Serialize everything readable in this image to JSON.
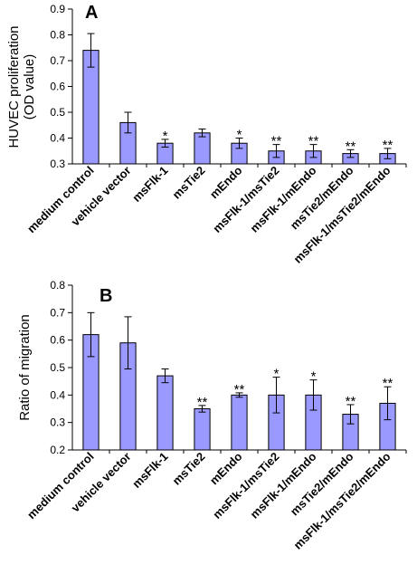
{
  "chart_data": [
    {
      "type": "bar",
      "panel_label": "A",
      "ylabel_lines": [
        "HUVEC proliferation",
        "(OD value)"
      ],
      "categories": [
        "medium control",
        "vehicle vector",
        "msFlk-1",
        "msTie2",
        "mEndo",
        "msFlk-1/msTie2",
        "msFlk-1/mEndo",
        "msTie2/mEndo",
        "msFlk-1/msTie2/mEndo"
      ],
      "values": [
        0.74,
        0.46,
        0.38,
        0.42,
        0.38,
        0.35,
        0.35,
        0.34,
        0.34
      ],
      "errors": [
        0.065,
        0.04,
        0.015,
        0.015,
        0.02,
        0.025,
        0.025,
        0.015,
        0.02
      ],
      "significance": [
        "",
        "",
        "*",
        "",
        "*",
        "**",
        "**",
        "**",
        "**"
      ],
      "ylim": [
        0.3,
        0.9
      ],
      "yticks": [
        "0.3",
        "0.4",
        "0.5",
        "0.6",
        "0.7",
        "0.8",
        "0.9"
      ],
      "bar_color": "#9999ff"
    },
    {
      "type": "bar",
      "panel_label": "B",
      "ylabel_lines": [
        "Ratio of migration"
      ],
      "categories": [
        "medium control",
        "vehicle vector",
        "msFlk-1",
        "msTie2",
        "mEndo",
        "msFlk-1/msTie2",
        "msFlk-1/mEndo",
        "msTie2/mEndo",
        "msFlk-1/msTie2/mEndo"
      ],
      "values": [
        0.62,
        0.59,
        0.47,
        0.35,
        0.4,
        0.4,
        0.4,
        0.33,
        0.37
      ],
      "errors": [
        0.08,
        0.095,
        0.025,
        0.012,
        0.008,
        0.065,
        0.055,
        0.035,
        0.06
      ],
      "significance": [
        "",
        "",
        "",
        "**",
        "**",
        "*",
        "*",
        "**",
        "**"
      ],
      "ylim": [
        0.2,
        0.8
      ],
      "yticks": [
        "0.2",
        "0.3",
        "0.4",
        "0.5",
        "0.6",
        "0.7",
        "0.8"
      ],
      "bar_color": "#9999ff"
    }
  ]
}
